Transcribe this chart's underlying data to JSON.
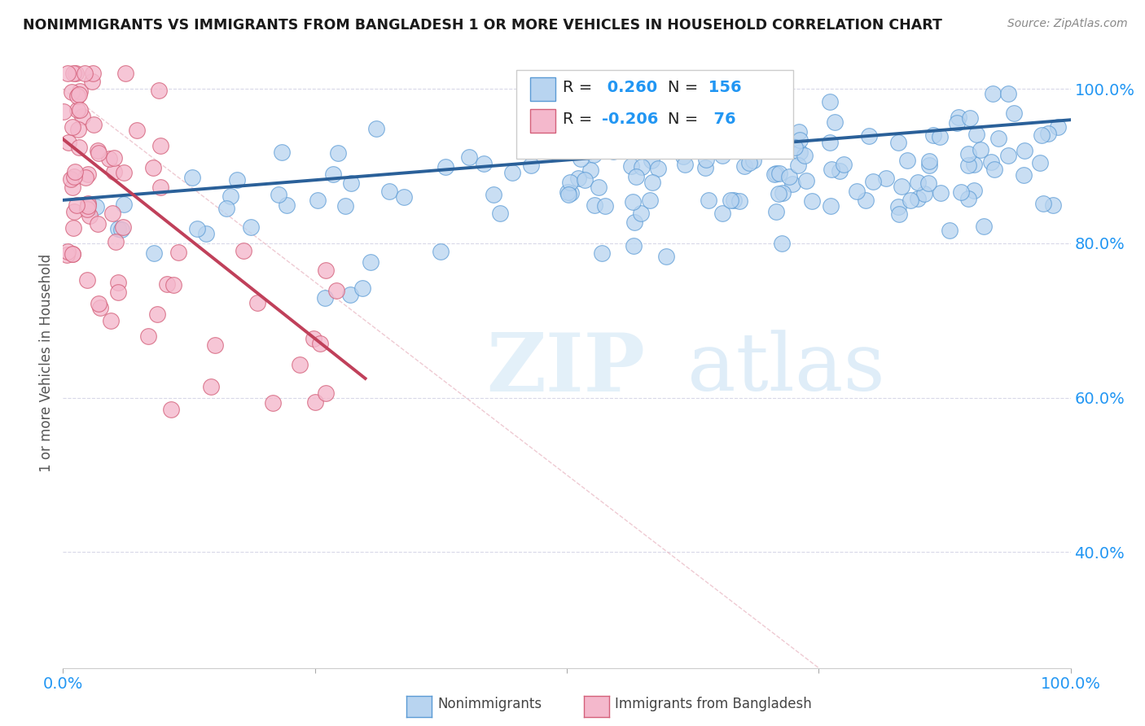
{
  "title": "NONIMMIGRANTS VS IMMIGRANTS FROM BANGLADESH 1 OR MORE VEHICLES IN HOUSEHOLD CORRELATION CHART",
  "source": "Source: ZipAtlas.com",
  "ylabel": "1 or more Vehicles in Household",
  "xlim": [
    0.0,
    1.0
  ],
  "ylim": [
    0.25,
    1.04
  ],
  "yticks": [
    0.4,
    0.6,
    0.8,
    1.0
  ],
  "ytick_labels": [
    "40.0%",
    "60.0%",
    "80.0%",
    "100.0%"
  ],
  "xticks": [
    0.0,
    0.25,
    0.5,
    0.75,
    1.0
  ],
  "xtick_labels": [
    "0.0%",
    "",
    "",
    "",
    "100.0%"
  ],
  "legend_items": [
    {
      "label": "Nonimmigrants",
      "color": "#b8d4f0",
      "edge_color": "#5b9bd5",
      "R": 0.26,
      "N": 156
    },
    {
      "label": "Immigrants from Bangladesh",
      "color": "#f4b8cc",
      "edge_color": "#d4607a",
      "R": -0.206,
      "N": 76
    }
  ],
  "blue_line": {
    "x_start": 0.0,
    "y_start": 0.856,
    "x_end": 1.0,
    "y_end": 0.96
  },
  "pink_line": {
    "x_start": 0.0,
    "y_start": 0.935,
    "x_end": 0.3,
    "y_end": 0.625
  },
  "diagonal_line": {
    "x_start": 0.0,
    "y_start": 1.0,
    "x_end": 1.0,
    "y_end": 0.0
  },
  "title_color": "#1a1a1a",
  "source_color": "#888888",
  "axis_label_color": "#2196F3",
  "background_color": "#ffffff",
  "grid_color": "#d8d8e8",
  "blue_scatter_color": "#b8d4f0",
  "blue_scatter_edge": "#5b9bd5",
  "pink_scatter_color": "#f4b8cc",
  "pink_scatter_edge": "#d4607a",
  "n_blue": 156,
  "n_pink": 76,
  "R_blue": 0.26,
  "R_pink": -0.206,
  "watermark_text": "ZIPatlas",
  "watermark_color": "#d6eaf8",
  "legend_R_color": "#2196F3",
  "legend_N_color": "#2196F3"
}
